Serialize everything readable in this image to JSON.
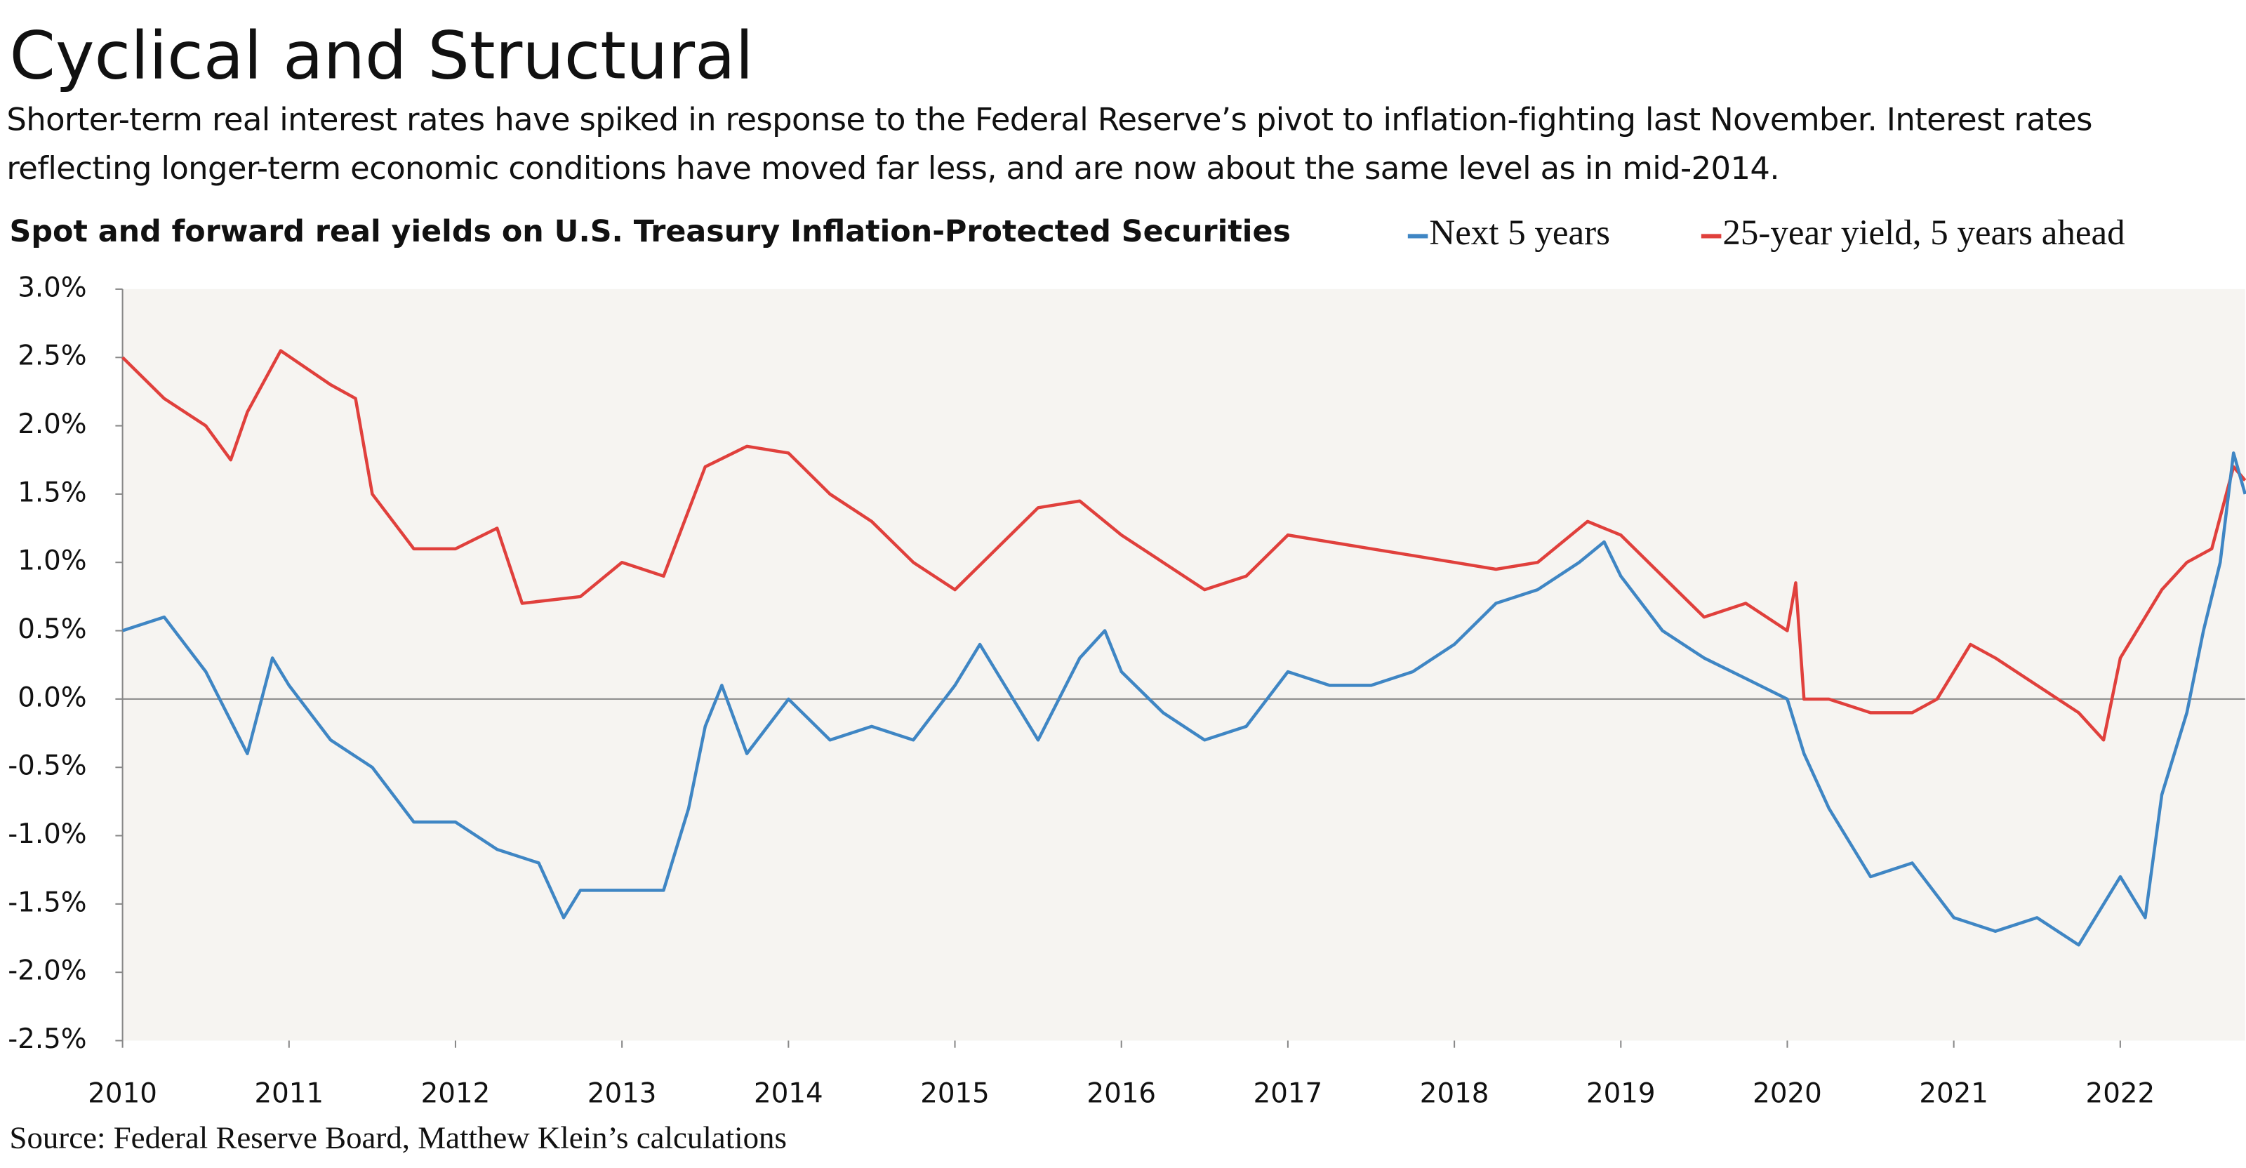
{
  "chart_data": {
    "type": "line",
    "title": "Cyclical and Structural",
    "subtitle": "Shorter-term real interest rates have spiked in response to the Federal Reserve’s pivot to inflation-fighting last November. Interest rates reflecting longer-term economic conditions have moved far less, and are now about the same level as in mid-2014.",
    "chart_title": "Spot and forward real yields on U.S. Treasury Inflation-Protected Securities",
    "source": "Source: Federal Reserve Board, Matthew Klein’s calculations",
    "xlim": [
      2010,
      2022.75
    ],
    "xticks": [
      2010,
      2011,
      2012,
      2013,
      2014,
      2015,
      2016,
      2017,
      2018,
      2019,
      2020,
      2021,
      2022
    ],
    "ylim": [
      -2.5,
      3.0
    ],
    "yticks": [
      {
        "value": 3.0,
        "label": "3.0%"
      },
      {
        "value": 2.5,
        "label": "2.5%"
      },
      {
        "value": 2.0,
        "label": "2.0%"
      },
      {
        "value": 1.5,
        "label": "1.5%"
      },
      {
        "value": 1.0,
        "label": "1.0%"
      },
      {
        "value": 0.5,
        "label": "0.5%"
      },
      {
        "value": 0.0,
        "label": "0.0%"
      },
      {
        "value": -0.5,
        "label": "-0.5%"
      },
      {
        "value": -1.0,
        "label": "-1.0%"
      },
      {
        "value": -1.5,
        "label": "-1.5%"
      },
      {
        "value": -2.0,
        "label": "-2.0%"
      },
      {
        "value": -2.5,
        "label": "-2.5%"
      }
    ],
    "background": "#f6f4f1",
    "series": [
      {
        "name": "Next 5 years",
        "color": "#3f86c4",
        "x": [
          2010.0,
          2010.25,
          2010.5,
          2010.75,
          2010.9,
          2011.0,
          2011.25,
          2011.5,
          2011.75,
          2012.0,
          2012.25,
          2012.5,
          2012.65,
          2012.75,
          2013.0,
          2013.25,
          2013.4,
          2013.5,
          2013.6,
          2013.75,
          2014.0,
          2014.25,
          2014.5,
          2014.75,
          2015.0,
          2015.15,
          2015.25,
          2015.5,
          2015.75,
          2015.9,
          2016.0,
          2016.25,
          2016.5,
          2016.75,
          2017.0,
          2017.25,
          2017.5,
          2017.75,
          2018.0,
          2018.25,
          2018.5,
          2018.75,
          2018.9,
          2019.0,
          2019.25,
          2019.5,
          2019.75,
          2020.0,
          2020.1,
          2020.25,
          2020.5,
          2020.75,
          2021.0,
          2021.25,
          2021.5,
          2021.75,
          2022.0,
          2022.15,
          2022.25,
          2022.4,
          2022.5,
          2022.6,
          2022.68,
          2022.75
        ],
        "values": [
          0.5,
          0.6,
          0.2,
          -0.4,
          0.3,
          0.1,
          -0.3,
          -0.5,
          -0.9,
          -0.9,
          -1.1,
          -1.2,
          -1.6,
          -1.4,
          -1.4,
          -1.4,
          -0.8,
          -0.2,
          0.1,
          -0.4,
          0.0,
          -0.3,
          -0.2,
          -0.3,
          0.1,
          0.4,
          0.2,
          -0.3,
          0.3,
          0.5,
          0.2,
          -0.1,
          -0.3,
          -0.2,
          0.2,
          0.1,
          0.1,
          0.2,
          0.4,
          0.7,
          0.8,
          1.0,
          1.15,
          0.9,
          0.5,
          0.3,
          0.15,
          0.0,
          -0.4,
          -0.8,
          -1.3,
          -1.2,
          -1.6,
          -1.7,
          -1.6,
          -1.8,
          -1.3,
          -1.6,
          -0.7,
          -0.1,
          0.5,
          1.0,
          1.8,
          1.5
        ]
      },
      {
        "name": "25-year yield, 5 years ahead",
        "color": "#e0403c",
        "x": [
          2010.0,
          2010.25,
          2010.5,
          2010.65,
          2010.75,
          2010.95,
          2011.25,
          2011.4,
          2011.5,
          2011.75,
          2012.0,
          2012.25,
          2012.4,
          2012.75,
          2013.0,
          2013.25,
          2013.5,
          2013.75,
          2014.0,
          2014.25,
          2014.5,
          2014.75,
          2015.0,
          2015.25,
          2015.5,
          2015.75,
          2016.0,
          2016.25,
          2016.5,
          2016.75,
          2017.0,
          2017.25,
          2017.5,
          2017.75,
          2018.0,
          2018.25,
          2018.5,
          2018.8,
          2019.0,
          2019.25,
          2019.5,
          2019.75,
          2020.0,
          2020.05,
          2020.1,
          2020.25,
          2020.5,
          2020.75,
          2020.9,
          2021.1,
          2021.25,
          2021.5,
          2021.75,
          2021.9,
          2022.0,
          2022.25,
          2022.4,
          2022.55,
          2022.68,
          2022.75
        ],
        "values": [
          2.5,
          2.2,
          2.0,
          1.75,
          2.1,
          2.55,
          2.3,
          2.2,
          1.5,
          1.1,
          1.1,
          1.25,
          0.7,
          0.75,
          1.0,
          0.9,
          1.7,
          1.85,
          1.8,
          1.5,
          1.3,
          1.0,
          0.8,
          1.1,
          1.4,
          1.45,
          1.2,
          1.0,
          0.8,
          0.9,
          1.2,
          1.15,
          1.1,
          1.05,
          1.0,
          0.95,
          1.0,
          1.3,
          1.2,
          0.9,
          0.6,
          0.7,
          0.5,
          0.85,
          0.0,
          0.0,
          -0.1,
          -0.1,
          0.0,
          0.4,
          0.3,
          0.1,
          -0.1,
          -0.3,
          0.3,
          0.8,
          1.0,
          1.1,
          1.7,
          1.6
        ]
      }
    ]
  }
}
